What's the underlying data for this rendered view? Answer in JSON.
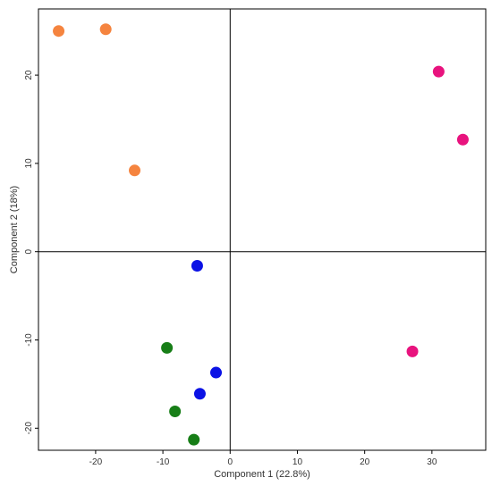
{
  "chart_data": {
    "type": "scatter",
    "title": "",
    "xlabel": "Component 1 (22.8%)",
    "ylabel": "Component 2 (18%)",
    "xlim": [
      -28.5,
      38
    ],
    "ylim": [
      -22.5,
      27.5
    ],
    "xticks": [
      -20,
      -10,
      0,
      10,
      20,
      30
    ],
    "yticks": [
      -20,
      -10,
      0,
      10,
      20
    ],
    "grid": false,
    "zero_lines": true,
    "series": [
      {
        "color": "#f5843f",
        "points": [
          [
            -25.5,
            25.0
          ],
          [
            -18.5,
            25.2
          ],
          [
            -14.2,
            9.2
          ]
        ]
      },
      {
        "color": "#e8137e",
        "points": [
          [
            31.0,
            20.4
          ],
          [
            34.6,
            12.7
          ],
          [
            27.1,
            -11.3
          ]
        ]
      },
      {
        "color": "#0b12e5",
        "points": [
          [
            -4.9,
            -1.6
          ],
          [
            -2.1,
            -13.7
          ],
          [
            -4.5,
            -16.1
          ]
        ]
      },
      {
        "color": "#177e17",
        "points": [
          [
            -9.4,
            -10.9
          ],
          [
            -8.2,
            -18.1
          ],
          [
            -5.4,
            -21.3
          ]
        ]
      }
    ]
  }
}
